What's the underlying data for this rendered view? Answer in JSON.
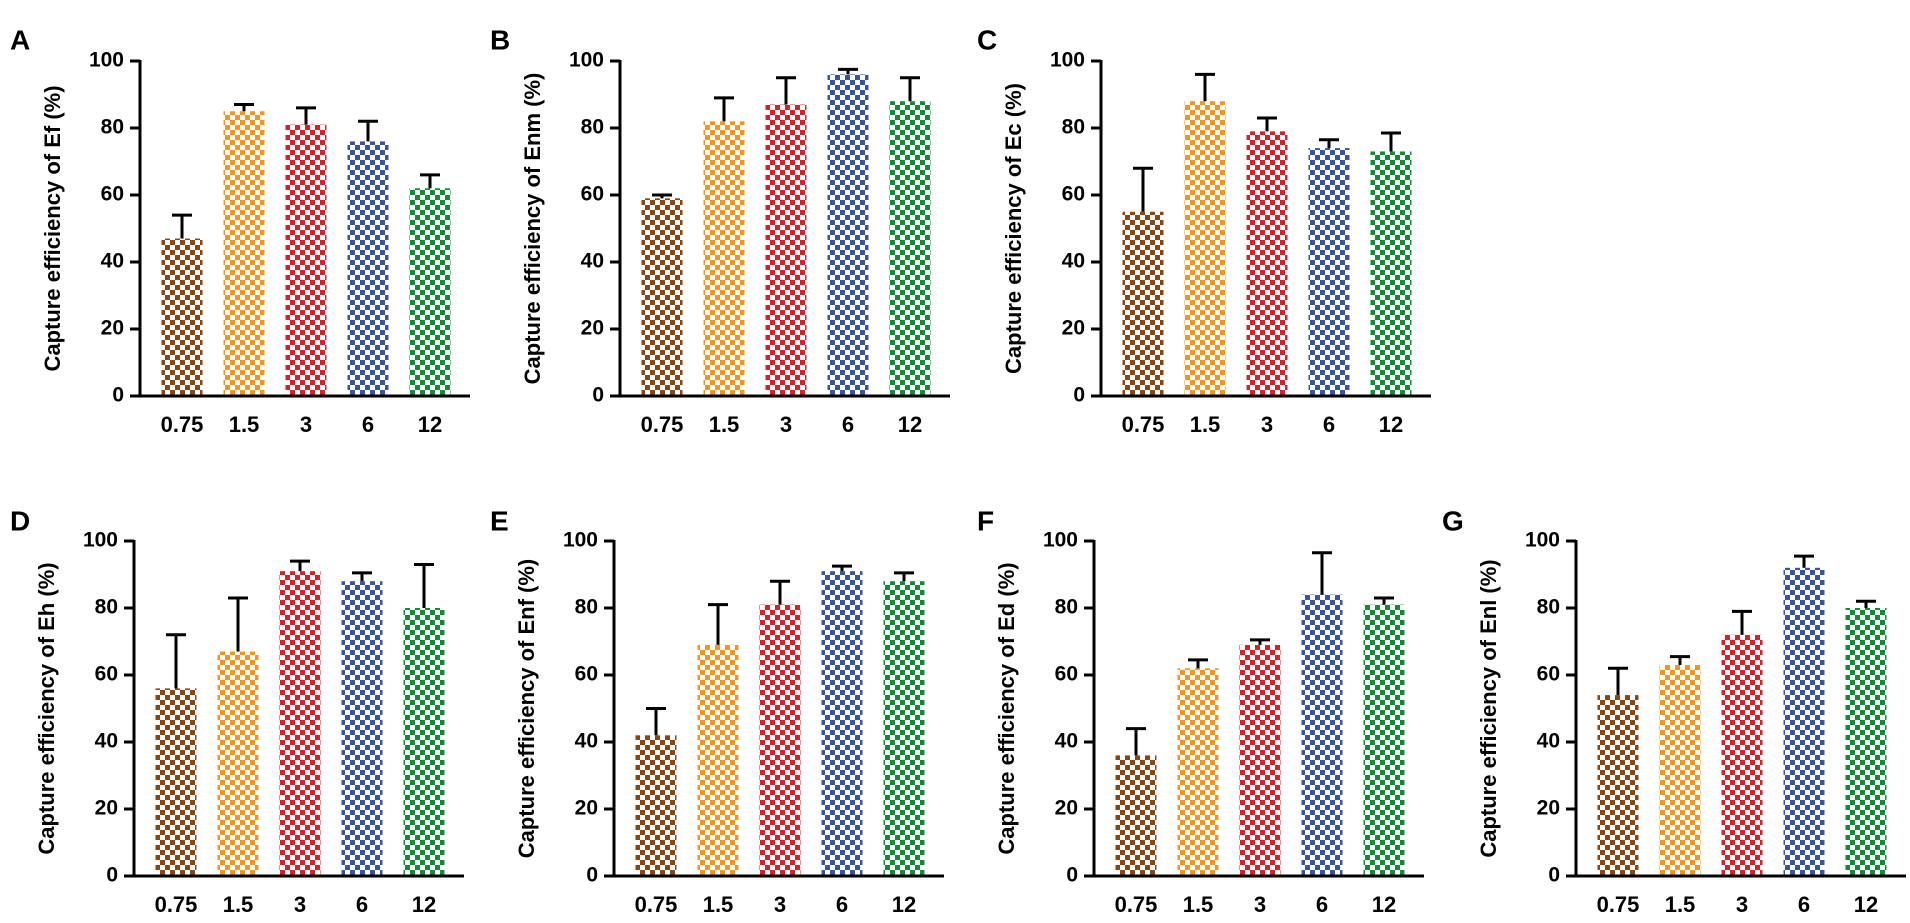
{
  "figure": {
    "panels": [
      "A",
      "B",
      "C",
      "D",
      "E",
      "F",
      "G"
    ]
  },
  "colors": {
    "0.75": "#8B4513",
    "1.5": "#F7941D",
    "3": "#DC1F26",
    "6": "#3953A4",
    "12": "#138A36",
    "axis": "#000000"
  },
  "chart_data": [
    {
      "panel": "A",
      "type": "bar",
      "title": "",
      "xlabel": "",
      "ylabel": "Capture efficiency of Ef (%)",
      "categories": [
        "0.75",
        "1.5",
        "3",
        "6",
        "12"
      ],
      "values": [
        47,
        85,
        81,
        76,
        62
      ],
      "errors": [
        7,
        2,
        5,
        6,
        4
      ],
      "ylim": [
        0,
        100
      ],
      "yticks": [
        "0",
        "20",
        "40",
        "60",
        "80",
        "100"
      ]
    },
    {
      "panel": "B",
      "type": "bar",
      "title": "",
      "xlabel": "",
      "ylabel": "Capture efficiency of Enm (%)",
      "categories": [
        "0.75",
        "1.5",
        "3",
        "6",
        "12"
      ],
      "values": [
        59,
        82,
        87,
        96,
        88
      ],
      "errors": [
        1,
        7,
        8,
        1.5,
        7
      ],
      "ylim": [
        0,
        100
      ],
      "yticks": [
        "0",
        "20",
        "40",
        "60",
        "80",
        "100"
      ]
    },
    {
      "panel": "C",
      "type": "bar",
      "title": "",
      "xlabel": "",
      "ylabel": "Capture efficiency of Ec (%)",
      "categories": [
        "0.75",
        "1.5",
        "3",
        "6",
        "12"
      ],
      "values": [
        55,
        88,
        79,
        74,
        73
      ],
      "errors": [
        13,
        8,
        4,
        2.5,
        5.5
      ],
      "ylim": [
        0,
        100
      ],
      "yticks": [
        "0",
        "20",
        "40",
        "60",
        "80",
        "100"
      ]
    },
    {
      "panel": "D",
      "type": "bar",
      "title": "",
      "xlabel": "",
      "ylabel": "Capture efficiency of Eh (%)",
      "categories": [
        "0.75",
        "1.5",
        "3",
        "6",
        "12"
      ],
      "values": [
        56,
        67,
        91,
        88,
        80
      ],
      "errors": [
        16,
        16,
        3,
        2.5,
        13
      ],
      "ylim": [
        0,
        100
      ],
      "yticks": [
        "0",
        "20",
        "40",
        "60",
        "80",
        "100"
      ]
    },
    {
      "panel": "E",
      "type": "bar",
      "title": "",
      "xlabel": "",
      "ylabel": "Capture efficiency of Enf (%)",
      "categories": [
        "0.75",
        "1.5",
        "3",
        "6",
        "12"
      ],
      "values": [
        42,
        69,
        81,
        91,
        88
      ],
      "errors": [
        8,
        12,
        7,
        1.5,
        2.5
      ],
      "ylim": [
        0,
        100
      ],
      "yticks": [
        "0",
        "20",
        "40",
        "60",
        "80",
        "100"
      ]
    },
    {
      "panel": "F",
      "type": "bar",
      "title": "",
      "xlabel": "",
      "ylabel": "Capture efficiency of Ed (%)",
      "categories": [
        "0.75",
        "1.5",
        "3",
        "6",
        "12"
      ],
      "values": [
        36,
        62,
        69,
        84,
        81
      ],
      "errors": [
        8,
        2.5,
        1.5,
        12.5,
        2
      ],
      "ylim": [
        0,
        100
      ],
      "yticks": [
        "0",
        "20",
        "40",
        "60",
        "80",
        "100"
      ]
    },
    {
      "panel": "G",
      "type": "bar",
      "title": "",
      "xlabel": "",
      "ylabel": "Capture efficiency of Enl (%)",
      "categories": [
        "0.75",
        "1.5",
        "3",
        "6",
        "12"
      ],
      "values": [
        54,
        63,
        72,
        92,
        80
      ],
      "errors": [
        8,
        2.5,
        7,
        3.5,
        2
      ],
      "ylim": [
        0,
        100
      ],
      "yticks": [
        "0",
        "20",
        "40",
        "60",
        "80",
        "100"
      ]
    }
  ]
}
